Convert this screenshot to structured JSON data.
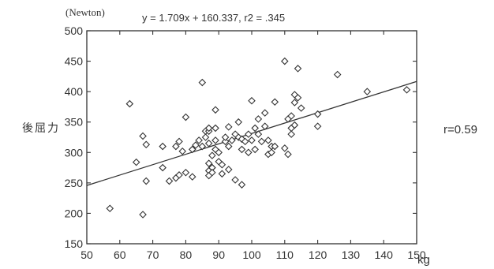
{
  "chart_data": {
    "type": "scatter",
    "title": "y = 1.709x + 160.337, r2 = .345",
    "y_unit": "(Newton)",
    "ylabel": "後屈力",
    "xlabel": "kg",
    "annotation": "r=0.59",
    "xlim": [
      50,
      150
    ],
    "ylim": [
      150,
      500
    ],
    "x_ticks": [
      50,
      60,
      70,
      80,
      90,
      100,
      110,
      120,
      130,
      140,
      150
    ],
    "y_ticks": [
      150,
      200,
      250,
      300,
      350,
      400,
      450,
      500
    ],
    "grid": false,
    "marker": "open-diamond",
    "regression": {
      "slope": 1.709,
      "intercept": 160.337,
      "r2": 0.345
    },
    "points": [
      [
        57,
        208
      ],
      [
        63,
        380
      ],
      [
        65,
        284
      ],
      [
        67,
        198
      ],
      [
        67,
        327
      ],
      [
        68,
        253
      ],
      [
        68,
        313
      ],
      [
        73,
        275
      ],
      [
        73,
        310
      ],
      [
        75,
        253
      ],
      [
        77,
        258
      ],
      [
        77,
        310
      ],
      [
        78,
        318
      ],
      [
        78,
        263
      ],
      [
        79,
        302
      ],
      [
        80,
        267
      ],
      [
        80,
        358
      ],
      [
        82,
        305
      ],
      [
        82,
        260
      ],
      [
        83,
        312
      ],
      [
        84,
        320
      ],
      [
        85,
        415
      ],
      [
        85,
        310
      ],
      [
        86,
        335
      ],
      [
        86,
        325
      ],
      [
        87,
        335
      ],
      [
        87,
        340
      ],
      [
        87,
        315
      ],
      [
        87,
        282
      ],
      [
        87,
        270
      ],
      [
        87,
        262
      ],
      [
        88,
        275
      ],
      [
        88,
        295
      ],
      [
        88,
        275
      ],
      [
        88,
        267
      ],
      [
        89,
        370
      ],
      [
        89,
        340
      ],
      [
        89,
        320
      ],
      [
        89,
        305
      ],
      [
        90,
        300
      ],
      [
        90,
        285
      ],
      [
        91,
        280
      ],
      [
        91,
        265
      ],
      [
        92,
        318
      ],
      [
        92,
        325
      ],
      [
        93,
        342
      ],
      [
        93,
        310
      ],
      [
        93,
        272
      ],
      [
        94,
        320
      ],
      [
        95,
        330
      ],
      [
        95,
        255
      ],
      [
        96,
        350
      ],
      [
        96,
        325
      ],
      [
        97,
        322
      ],
      [
        97,
        305
      ],
      [
        97,
        247
      ],
      [
        98,
        318
      ],
      [
        99,
        330
      ],
      [
        99,
        300
      ],
      [
        100,
        320
      ],
      [
        100,
        385
      ],
      [
        101,
        340
      ],
      [
        101,
        305
      ],
      [
        102,
        355
      ],
      [
        102,
        330
      ],
      [
        103,
        318
      ],
      [
        104,
        343
      ],
      [
        104,
        365
      ],
      [
        105,
        320
      ],
      [
        105,
        297
      ],
      [
        106,
        310
      ],
      [
        106,
        300
      ],
      [
        107,
        383
      ],
      [
        107,
        310
      ],
      [
        110,
        450
      ],
      [
        110,
        307
      ],
      [
        111,
        355
      ],
      [
        111,
        297
      ],
      [
        112,
        360
      ],
      [
        112,
        340
      ],
      [
        112,
        330
      ],
      [
        113,
        395
      ],
      [
        113,
        382
      ],
      [
        113,
        345
      ],
      [
        114,
        438
      ],
      [
        114,
        390
      ],
      [
        115,
        373
      ],
      [
        120,
        363
      ],
      [
        120,
        343
      ],
      [
        126,
        428
      ],
      [
        135,
        400
      ],
      [
        147,
        403
      ]
    ]
  }
}
